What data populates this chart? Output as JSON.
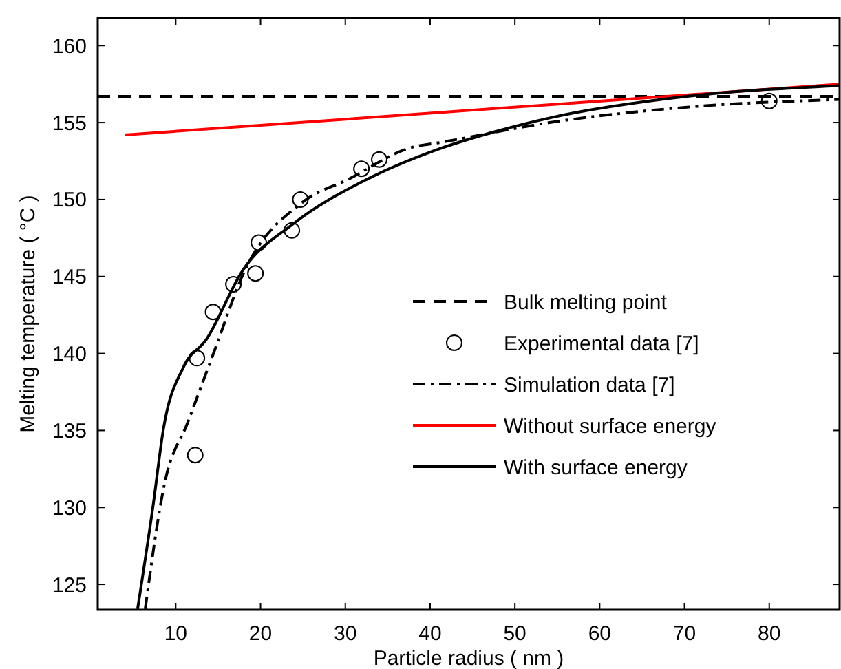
{
  "chart_data": {
    "type": "line",
    "xlabel": "Particle radius ( nm )",
    "ylabel": "Melting temperature ( °C )",
    "xlim": [
      0.8,
      88.3
    ],
    "xticks": [
      10,
      20,
      30,
      40,
      50,
      60,
      70,
      80
    ],
    "ylim": [
      123.35,
      161.8
    ],
    "yticks": [
      125,
      130,
      135,
      140,
      145,
      150,
      155,
      160
    ],
    "grid": false,
    "legend": "right",
    "series": [
      {
        "name": "Bulk melting point",
        "color": "#000000",
        "line_style": "dashed",
        "x": [
          0.8,
          88.3
        ],
        "values": [
          156.7,
          156.7
        ]
      },
      {
        "name": "Experimental data [7]",
        "type": "scatter",
        "color": "#000000",
        "marker": "circle",
        "x": [
          12.3,
          12.5,
          14.4,
          16.8,
          19.4,
          19.8,
          23.7,
          24.7,
          31.9,
          34.0,
          80.0
        ],
        "values": [
          133.4,
          139.7,
          142.7,
          144.5,
          145.2,
          147.2,
          148.0,
          150.0,
          152.0,
          152.6,
          156.4
        ]
      },
      {
        "name": "Simulation data [7]",
        "color": "#000000",
        "line_style": "dashdot",
        "x": [
          6.4,
          8.7,
          11.4,
          14.65,
          17.9,
          24.9,
          30.3,
          37.9,
          41.1,
          54.1,
          70.3,
          88.3
        ],
        "values": [
          123.4,
          131.6,
          135.5,
          140.3,
          145.1,
          149.8,
          151.3,
          153.4,
          153.7,
          155.0,
          156.0,
          156.5
        ]
      },
      {
        "name": "Without surface energy",
        "color": "#ff0000",
        "line_style": "solid",
        "x": [
          4.0,
          88.3
        ],
        "values": [
          154.2,
          157.5
        ]
      },
      {
        "name": "With surface energy",
        "color": "#000000",
        "line_style": "solid",
        "x": [
          5.5,
          7.35,
          8.55,
          10.9,
          13.6,
          17.9,
          23.8,
          32.5,
          40.6,
          47.6,
          54.1,
          70.3,
          88.3
        ],
        "values": [
          123.4,
          130.2,
          135.1,
          139.1,
          140.9,
          145.4,
          148.4,
          151.3,
          153.2,
          154.4,
          155.3,
          156.7,
          157.4
        ]
      }
    ]
  }
}
